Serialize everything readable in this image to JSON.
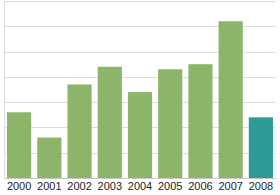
{
  "chart_data": {
    "type": "bar",
    "categories": [
      "2000",
      "2001",
      "2002",
      "2003",
      "2004",
      "2005",
      "2006",
      "2007",
      "2008"
    ],
    "values": [
      2.6,
      1.6,
      3.7,
      4.4,
      3.4,
      4.3,
      4.5,
      6.2,
      2.4
    ],
    "colors": [
      "#8db56a",
      "#8db56a",
      "#8db56a",
      "#8db56a",
      "#8db56a",
      "#8db56a",
      "#8db56a",
      "#8db56a",
      "#2f9b98"
    ],
    "ylim": [
      0,
      7
    ],
    "yticks": [
      0,
      1,
      2,
      3,
      4,
      5,
      6,
      7
    ],
    "grid": true,
    "tick_labels": "x"
  }
}
